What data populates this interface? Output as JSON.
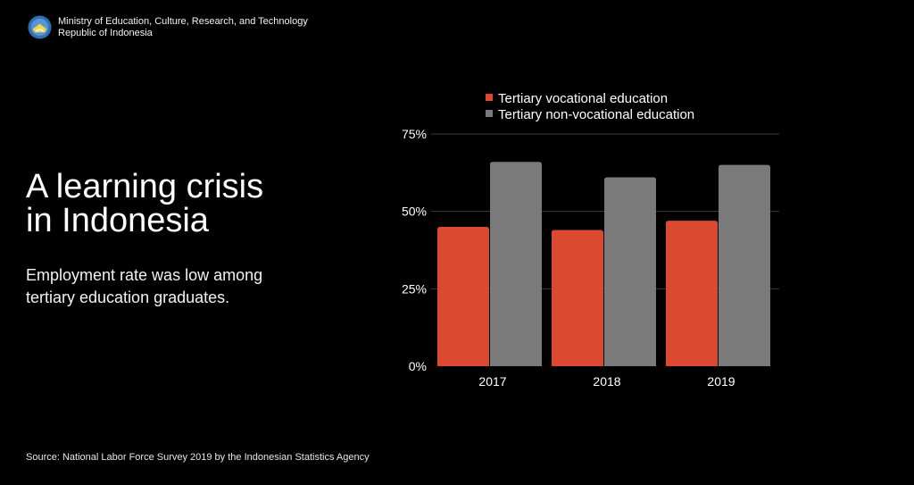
{
  "header": {
    "org_line1": "Ministry of Education, Culture, Research, and Technology",
    "org_line2": "Republic of Indonesia"
  },
  "main": {
    "title_line1": "A learning crisis",
    "title_line2": "in Indonesia",
    "subtitle": "Employment rate was low among tertiary education graduates."
  },
  "footer": {
    "source": "Source: National Labor Force Survey 2019 by the Indonesian Statistics Agency"
  },
  "colors": {
    "vocational": "#db4a30",
    "non_vocational": "#7a7a7a",
    "background": "#000000",
    "gridline": "#3a3a3a"
  },
  "chart_data": {
    "type": "bar",
    "categories": [
      "2017",
      "2018",
      "2019"
    ],
    "series": [
      {
        "name": "Tertiary vocational education",
        "values": [
          45,
          44,
          47
        ]
      },
      {
        "name": "Tertiary non-vocational education",
        "values": [
          66,
          61,
          65
        ]
      }
    ],
    "y_ticks": [
      "0%",
      "25%",
      "50%",
      "75%"
    ],
    "ylim": [
      0,
      75
    ],
    "grid": true,
    "legend_position": "top"
  }
}
